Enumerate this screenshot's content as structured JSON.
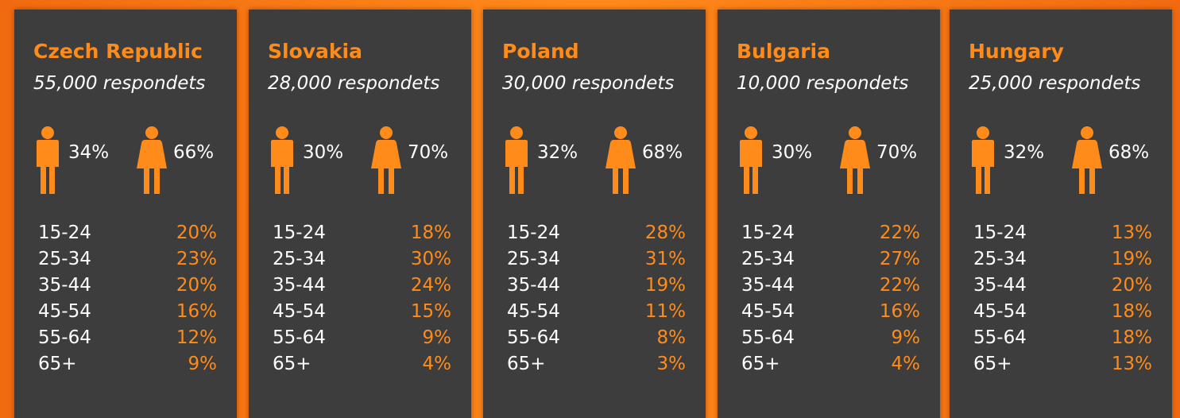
{
  "panels": [
    {
      "country": "Czech Republic",
      "respondents": "55,000 respondets",
      "male": "34%",
      "female": "66%",
      "ages": [
        [
          "15-24",
          "20%"
        ],
        [
          "25-34",
          "23%"
        ],
        [
          "35-44",
          "20%"
        ],
        [
          "45-54",
          "16%"
        ],
        [
          "55-64",
          "12%"
        ],
        [
          "65+",
          "9%"
        ]
      ]
    },
    {
      "country": "Slovakia",
      "respondents": "28,000 respondets",
      "male": "30%",
      "female": "70%",
      "ages": [
        [
          "15-24",
          "18%"
        ],
        [
          "25-34",
          "30%"
        ],
        [
          "35-44",
          "24%"
        ],
        [
          "45-54",
          "15%"
        ],
        [
          "55-64",
          "9%"
        ],
        [
          "65+",
          "4%"
        ]
      ]
    },
    {
      "country": "Poland",
      "respondents": "30,000 respondets",
      "male": "32%",
      "female": "68%",
      "ages": [
        [
          "15-24",
          "28%"
        ],
        [
          "25-34",
          "31%"
        ],
        [
          "35-44",
          "19%"
        ],
        [
          "45-54",
          "11%"
        ],
        [
          "55-64",
          "8%"
        ],
        [
          "65+",
          "3%"
        ]
      ]
    },
    {
      "country": "Bulgaria",
      "respondents": "10,000 respondets",
      "male": "30%",
      "female": "70%",
      "ages": [
        [
          "15-24",
          "22%"
        ],
        [
          "25-34",
          "27%"
        ],
        [
          "35-44",
          "22%"
        ],
        [
          "45-54",
          "16%"
        ],
        [
          "55-64",
          "9%"
        ],
        [
          "65+",
          "4%"
        ]
      ]
    },
    {
      "country": "Hungary",
      "respondents": "25,000 respondets",
      "male": "32%",
      "female": "68%",
      "ages": [
        [
          "15-24",
          "13%"
        ],
        [
          "25-34",
          "19%"
        ],
        [
          "35-44",
          "20%"
        ],
        [
          "45-54",
          "18%"
        ],
        [
          "55-64",
          "18%"
        ],
        [
          "65+",
          "13%"
        ]
      ]
    }
  ]
}
